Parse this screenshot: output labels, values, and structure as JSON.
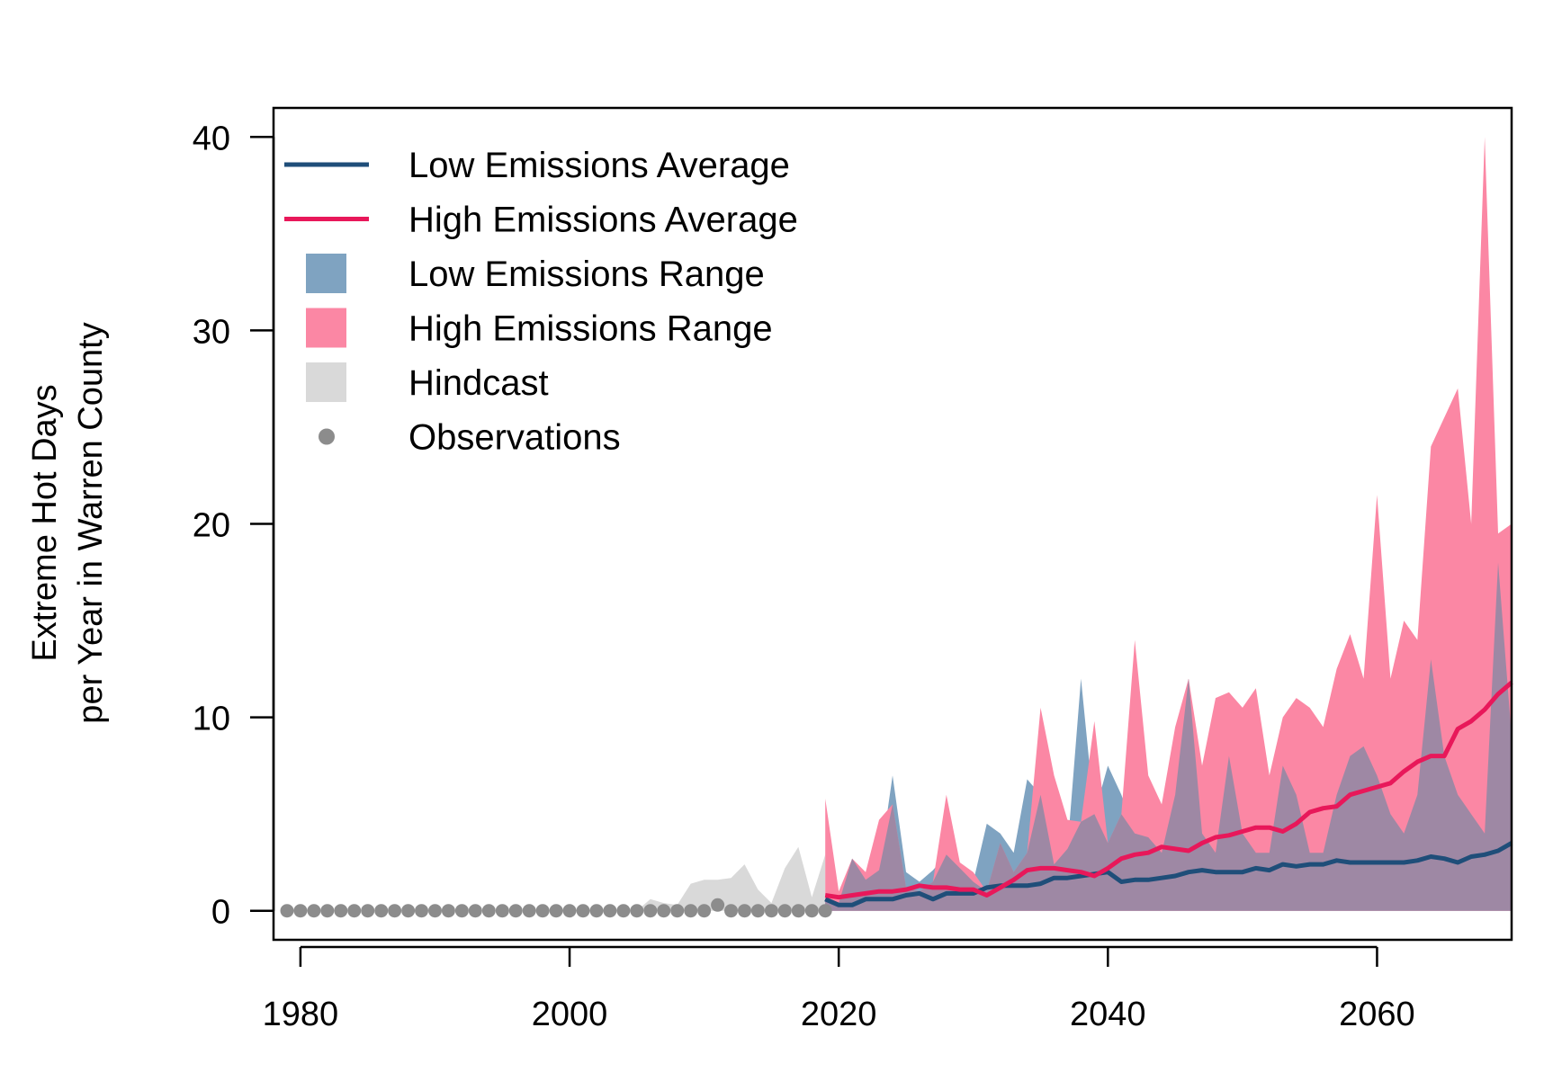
{
  "colors": {
    "low_avg": "#1f4e79",
    "high_avg": "#e8185a",
    "low_range": "#7fa3c1",
    "high_range": "#fb87a4",
    "overlap": "#9e88a4",
    "hindcast": "#d9d9d9",
    "observations": "#8c8c8c"
  },
  "chart_data": {
    "type": "area",
    "title": "",
    "xlabel": "",
    "ylabel": [
      "Extreme Hot Days",
      "per Year in Warren County"
    ],
    "xlim": [
      1978,
      2070
    ],
    "ylim": [
      -1.5,
      41.5
    ],
    "xticks": [
      1980,
      2000,
      2020,
      2040,
      2060
    ],
    "yticks": [
      0,
      10,
      20,
      30,
      40
    ],
    "grid": false,
    "legend_position": "top-left",
    "legend": [
      {
        "label": "Low Emissions Average",
        "kind": "line",
        "color_key": "low_avg"
      },
      {
        "label": "High Emissions Average",
        "kind": "line",
        "color_key": "high_avg"
      },
      {
        "label": "Low Emissions Range",
        "kind": "box",
        "color_key": "low_range"
      },
      {
        "label": "High Emissions Range",
        "kind": "box",
        "color_key": "high_range"
      },
      {
        "label": "Hindcast",
        "kind": "box",
        "color_key": "hindcast"
      },
      {
        "label": "Observations",
        "kind": "point",
        "color_key": "observations"
      }
    ],
    "hindcast": {
      "x": [
        1979,
        1980,
        1981,
        1982,
        1983,
        1984,
        1985,
        1986,
        1987,
        1988,
        1989,
        1990,
        1991,
        1992,
        1993,
        1994,
        1995,
        1996,
        1997,
        1998,
        1999,
        2000,
        2001,
        2002,
        2003,
        2004,
        2005,
        2006,
        2007,
        2008,
        2009,
        2010,
        2011,
        2012,
        2013,
        2014,
        2015,
        2016,
        2017,
        2018,
        2019
      ],
      "upper": [
        0,
        0,
        0,
        0,
        0,
        0,
        0,
        0,
        0,
        0,
        0,
        0,
        0,
        0,
        0,
        0,
        0,
        0,
        0,
        0,
        0,
        0,
        0,
        0,
        0,
        0,
        0,
        0.6,
        0.4,
        0.3,
        1.4,
        1.6,
        1.6,
        1.7,
        2.4,
        1.1,
        0.4,
        2.2,
        3.3,
        0.7,
        2.9
      ]
    },
    "observations": {
      "x": [
        1979,
        1980,
        1981,
        1982,
        1983,
        1984,
        1985,
        1986,
        1987,
        1988,
        1989,
        1990,
        1991,
        1992,
        1993,
        1994,
        1995,
        1996,
        1997,
        1998,
        1999,
        2000,
        2001,
        2002,
        2003,
        2004,
        2005,
        2006,
        2007,
        2008,
        2009,
        2010,
        2011,
        2012,
        2013,
        2014,
        2015,
        2016,
        2017,
        2018,
        2019
      ],
      "y": [
        0,
        0,
        0,
        0,
        0,
        0,
        0,
        0,
        0,
        0,
        0,
        0,
        0,
        0,
        0,
        0,
        0,
        0,
        0,
        0,
        0,
        0,
        0,
        0,
        0,
        0,
        0,
        0,
        0,
        0,
        0,
        0,
        0.3,
        0,
        0,
        0,
        0,
        0,
        0,
        0,
        0
      ]
    },
    "projection_x": [
      2019,
      2020,
      2021,
      2022,
      2023,
      2024,
      2025,
      2026,
      2027,
      2028,
      2029,
      2030,
      2031,
      2032,
      2033,
      2034,
      2035,
      2036,
      2037,
      2038,
      2039,
      2040,
      2041,
      2042,
      2043,
      2044,
      2045,
      2046,
      2047,
      2048,
      2049,
      2050,
      2051,
      2052,
      2053,
      2054,
      2055,
      2056,
      2057,
      2058,
      2059,
      2060,
      2061,
      2062,
      2063,
      2064,
      2065,
      2066,
      2067,
      2068,
      2069,
      2070
    ],
    "series": [
      {
        "name": "Low Emissions Range",
        "color_key": "low_range",
        "upper": [
          0.6,
          0.4,
          2.7,
          1.6,
          2.1,
          7.0,
          2.0,
          1.5,
          2.1,
          2.9,
          2.2,
          1.5,
          4.5,
          4.0,
          3.0,
          6.8,
          6.0,
          2.4,
          3.2,
          12.0,
          5.0,
          7.5,
          6.0,
          4.0,
          3.8,
          3.0,
          6.0,
          12.0,
          4.0,
          3.0,
          8.0,
          4.0,
          3.0,
          3.0,
          7.5,
          6.0,
          3.0,
          3.0,
          6.0,
          8.0,
          8.5,
          7.0,
          5.0,
          4.0,
          6.0,
          13.0,
          8.0,
          6.0,
          5.0,
          4.0,
          18.0,
          9.0
        ]
      },
      {
        "name": "High Emissions Range",
        "color_key": "high_range",
        "upper": [
          5.8,
          1.0,
          2.7,
          2.0,
          4.7,
          5.5,
          1.2,
          1.0,
          1.5,
          6.0,
          2.5,
          2.0,
          1.0,
          3.5,
          2.0,
          3.0,
          10.5,
          7.0,
          4.7,
          4.6,
          9.8,
          3.5,
          5.0,
          14.0,
          7.0,
          5.5,
          9.5,
          12.0,
          7.5,
          11.0,
          11.3,
          10.5,
          11.5,
          7.0,
          10.0,
          11.0,
          10.5,
          9.5,
          12.5,
          14.3,
          12.0,
          21.5,
          12.0,
          15.0,
          14.0,
          24.0,
          25.5,
          27.0,
          20.0,
          40.0,
          19.5,
          20.0
        ]
      },
      {
        "name": "Low Emissions Average",
        "color_key": "low_avg",
        "y": [
          0.6,
          0.3,
          0.3,
          0.6,
          0.6,
          0.6,
          0.8,
          0.9,
          0.6,
          0.9,
          0.9,
          0.9,
          1.2,
          1.3,
          1.3,
          1.3,
          1.4,
          1.7,
          1.7,
          1.8,
          1.9,
          2.0,
          1.5,
          1.6,
          1.6,
          1.7,
          1.8,
          2.0,
          2.1,
          2.0,
          2.0,
          2.0,
          2.2,
          2.1,
          2.4,
          2.3,
          2.4,
          2.4,
          2.6,
          2.5,
          2.5,
          2.5,
          2.5,
          2.5,
          2.6,
          2.8,
          2.7,
          2.5,
          2.8,
          2.9,
          3.1,
          3.5
        ]
      },
      {
        "name": "High Emissions Average",
        "color_key": "high_avg",
        "y": [
          0.8,
          0.7,
          0.8,
          0.9,
          1.0,
          1.0,
          1.1,
          1.3,
          1.2,
          1.2,
          1.1,
          1.1,
          0.8,
          1.2,
          1.6,
          2.1,
          2.2,
          2.2,
          2.1,
          2.0,
          1.8,
          2.2,
          2.7,
          2.9,
          3.0,
          3.3,
          3.2,
          3.1,
          3.5,
          3.8,
          3.9,
          4.1,
          4.3,
          4.3,
          4.1,
          4.5,
          5.1,
          5.3,
          5.4,
          6.0,
          6.2,
          6.4,
          6.6,
          7.2,
          7.7,
          8.0,
          8.0,
          9.4,
          9.8,
          10.4,
          11.2,
          11.8
        ]
      }
    ]
  }
}
